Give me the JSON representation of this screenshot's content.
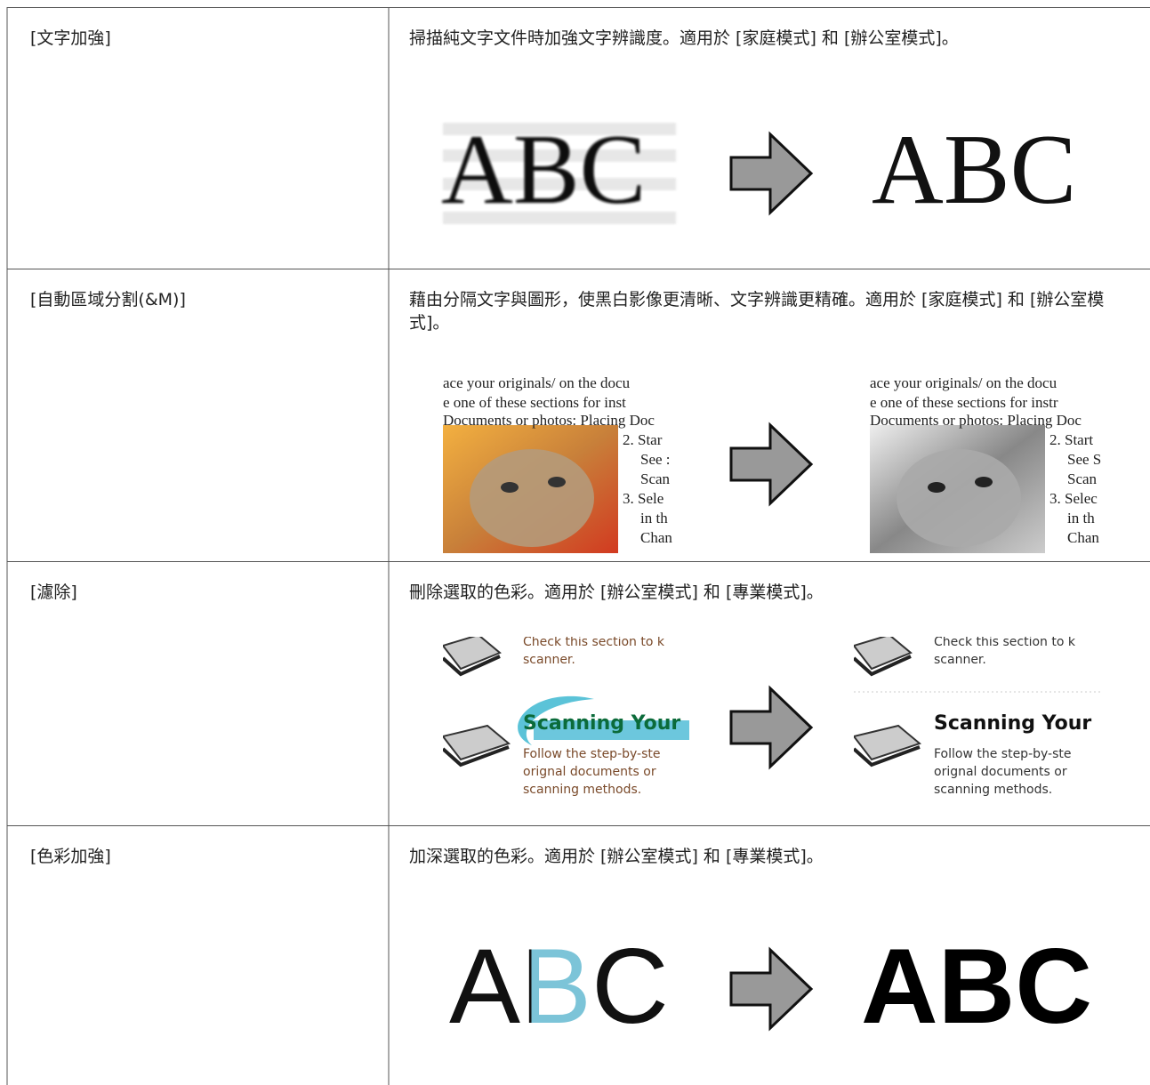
{
  "table": {
    "rows": [
      {
        "name": "[文字加強]",
        "description": "掃描純文字文件時加強文字辨識度。適用於 [家庭模式] 和 [辦公室模式]。",
        "before": [
          "ABC"
        ],
        "after": [
          "ABC"
        ]
      },
      {
        "name": "[自動區域分割(&M)]",
        "description": "藉由分隔文字與圖形，使黑白影像更清晰、文字辨識更精確。適用於 [家庭模式] 和 [辦公室模式]。",
        "before": [
          "ace your originals/ on the docu",
          "e one of these sections for inst",
          "Documents or photos: Placing Doc",
          "2. Star",
          "See :",
          "Scan",
          "3. Sele",
          "in th",
          "Chan"
        ],
        "after": [
          "ace your originals/ on the docu",
          "e one of these sections for instr",
          "Documents or photos: Placing Doc",
          "2. Start",
          "See S",
          "Scan",
          "3. Selec",
          "in th",
          "Chan"
        ]
      },
      {
        "name": "[濾除]",
        "description": "刪除選取的色彩。適用於 [辦公室模式] 和 [專業模式]。",
        "before": [
          "Check this section to k",
          "scanner.",
          "Scanning Your",
          "Follow the step-by-ste",
          "orignal documents or",
          "scanning methods."
        ],
        "after": [
          "Check this section to k",
          "scanner.",
          "Scanning Your",
          "Follow the step-by-ste",
          "orignal documents or",
          "scanning methods."
        ]
      },
      {
        "name": "[色彩加強]",
        "description": "加深選取的色彩。適用於 [辦公室模式] 和 [專業模式]。",
        "before": [
          "ABC"
        ],
        "after": [
          "ABC"
        ]
      }
    ]
  }
}
